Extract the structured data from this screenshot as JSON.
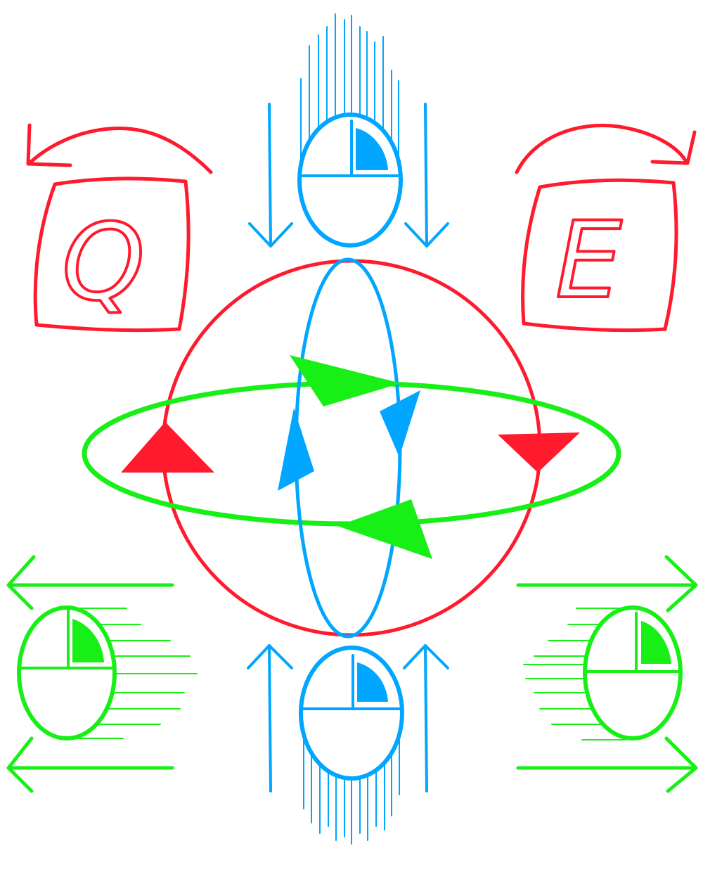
{
  "colors": {
    "red": "#ff1a2e",
    "blue": "#00a6ff",
    "green": "#17ef17",
    "background": "#ffffff"
  },
  "keys": {
    "left": {
      "label": "Q",
      "meaning": "rotate-counterclockwise"
    },
    "right": {
      "label": "E",
      "meaning": "rotate-clockwise"
    }
  },
  "icons": {
    "mouse_top": "mouse-move-up-icon",
    "mouse_bottom": "mouse-move-down-icon",
    "mouse_left": "mouse-move-left-icon",
    "mouse_right": "mouse-move-right-icon",
    "gizmo": "rotation-gizmo-icon"
  }
}
